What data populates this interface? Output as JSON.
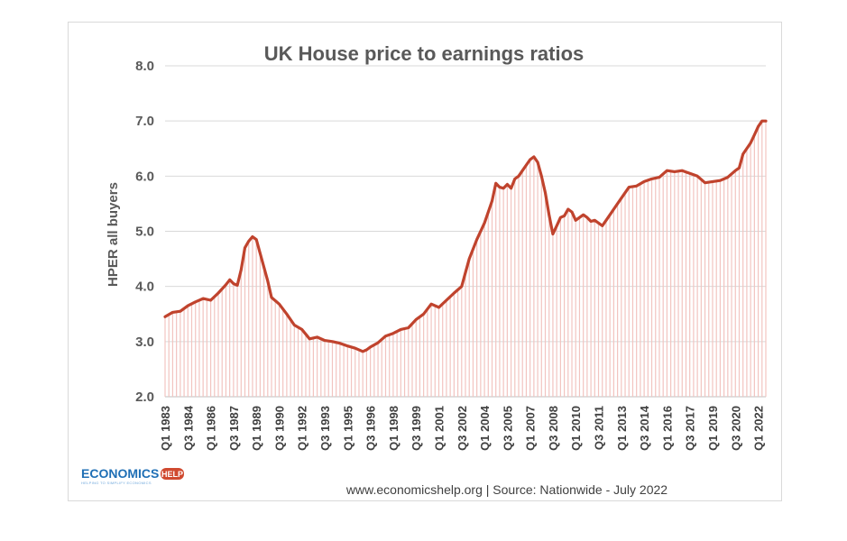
{
  "chart_data": {
    "type": "area",
    "title": "UK House price to earnings ratios",
    "xlabel": "",
    "ylabel": "HPER all buyers",
    "ylim": [
      2.0,
      8.0
    ],
    "y_ticks": [
      "2.0",
      "3.0",
      "4.0",
      "5.0",
      "6.0",
      "7.0",
      "8.0"
    ],
    "x_tick_labels": [
      "Q1 1983",
      "Q3 1984",
      "Q1 1986",
      "Q3 1987",
      "Q1 1989",
      "Q3 1990",
      "Q1 1992",
      "Q3 1993",
      "Q1 1995",
      "Q3 1996",
      "Q1 1998",
      "Q3 1999",
      "Q1 2001",
      "Q3 2002",
      "Q1 2004",
      "Q3 2005",
      "Q1 2007",
      "Q3 2008",
      "Q1 2010",
      "Q3 2011",
      "Q1 2013",
      "Q3 2014",
      "Q1 2016",
      "Q3 2017",
      "Q1 2019",
      "Q3 2020",
      "Q1 2022"
    ],
    "grid": true,
    "legend": "none",
    "colors": {
      "line": "#c0432d",
      "fill": "#f2c4c0",
      "grid": "#d9d9d9"
    },
    "series": [
      {
        "x": [
          1983.0,
          1983.5,
          1984.0,
          1984.5,
          1985.0,
          1985.5,
          1986.0,
          1986.5,
          1987.0,
          1987.25,
          1987.5,
          1987.75,
          1988.0,
          1988.25,
          1988.5,
          1988.75,
          1989.0,
          1989.25,
          1989.5,
          1989.75,
          1990.0,
          1990.5,
          1991.0,
          1991.5,
          1992.0,
          1992.5,
          1993.0,
          1993.5,
          1994.0,
          1994.5,
          1995.0,
          1995.5,
          1996.0,
          1996.25,
          1996.5,
          1997.0,
          1997.5,
          1998.0,
          1998.5,
          1999.0,
          1999.5,
          2000.0,
          2000.5,
          2001.0,
          2001.5,
          2002.0,
          2002.5,
          2003.0,
          2003.5,
          2004.0,
          2004.25,
          2004.5,
          2004.75,
          2005.0,
          2005.25,
          2005.5,
          2005.75,
          2006.0,
          2006.25,
          2006.5,
          2006.75,
          2007.0,
          2007.25,
          2007.5,
          2007.75,
          2008.0,
          2008.25,
          2008.5,
          2008.75,
          2009.0,
          2009.25,
          2009.5,
          2009.75,
          2010.0,
          2010.25,
          2010.5,
          2010.75,
          2011.0,
          2011.25,
          2011.5,
          2011.75,
          2012.0,
          2012.5,
          2013.0,
          2013.5,
          2014.0,
          2014.5,
          2015.0,
          2015.5,
          2016.0,
          2016.5,
          2017.0,
          2017.5,
          2018.0,
          2018.5,
          2019.0,
          2019.5,
          2020.0,
          2020.5,
          2020.75,
          2021.0,
          2021.5,
          2021.75,
          2022.0,
          2022.25,
          2022.5
        ],
        "values": [
          3.45,
          3.53,
          3.55,
          3.65,
          3.72,
          3.78,
          3.75,
          3.88,
          4.03,
          4.12,
          4.05,
          4.02,
          4.3,
          4.7,
          4.82,
          4.9,
          4.85,
          4.6,
          4.35,
          4.1,
          3.8,
          3.68,
          3.5,
          3.3,
          3.22,
          3.05,
          3.08,
          3.02,
          3.0,
          2.97,
          2.92,
          2.88,
          2.82,
          2.85,
          2.9,
          2.98,
          3.1,
          3.15,
          3.22,
          3.25,
          3.4,
          3.5,
          3.68,
          3.62,
          3.75,
          3.88,
          4.0,
          4.5,
          4.85,
          5.15,
          5.35,
          5.55,
          5.87,
          5.8,
          5.78,
          5.85,
          5.78,
          5.95,
          6.0,
          6.1,
          6.2,
          6.3,
          6.35,
          6.25,
          6.0,
          5.7,
          5.3,
          4.95,
          5.1,
          5.25,
          5.28,
          5.4,
          5.35,
          5.2,
          5.25,
          5.3,
          5.25,
          5.18,
          5.2,
          5.15,
          5.1,
          5.2,
          5.4,
          5.6,
          5.8,
          5.82,
          5.9,
          5.95,
          5.98,
          6.1,
          6.08,
          6.1,
          6.05,
          6.0,
          5.88,
          5.9,
          5.92,
          5.98,
          6.1,
          6.15,
          6.4,
          6.6,
          6.75,
          6.9,
          7.0,
          7.0
        ]
      }
    ]
  },
  "footer": {
    "source": "www.economicshelp.org  | Source: Nationwide - July 2022",
    "logo_main": "ECONOMICS",
    "logo_help": "HELP",
    "logo_tagline": "HELPING TO SIMPLIFY ECONOMICS"
  }
}
